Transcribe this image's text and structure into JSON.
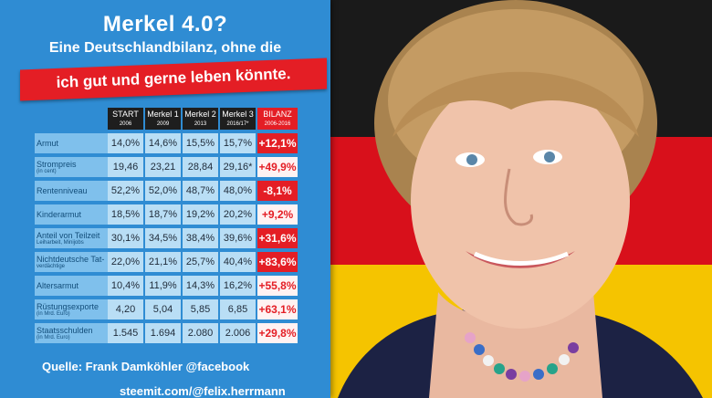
{
  "title": {
    "line1": "Merkel 4.0?",
    "line2": "Eine Deutschlandbilanz, ohne die",
    "line3": "ich gut und gerne leben könnte."
  },
  "table": {
    "headers": [
      {
        "label": "START",
        "sub": "2006"
      },
      {
        "label": "Merkel 1",
        "sub": "2009"
      },
      {
        "label": "Merkel 2",
        "sub": "2013"
      },
      {
        "label": "Merkel 3",
        "sub": "2016/17*"
      },
      {
        "label": "BILANZ",
        "sub": "2006-2016"
      }
    ],
    "rows": [
      {
        "label": "Armut",
        "note": "",
        "values": [
          "14,0%",
          "14,6%",
          "15,5%",
          "15,7%"
        ],
        "bilanz": "+12,1%",
        "bilanz_style": "red"
      },
      {
        "label": "Strompreis",
        "note": "(in cent)",
        "values": [
          "19,46",
          "23,21",
          "28,84",
          "29,16*"
        ],
        "bilanz": "+49,9%",
        "bilanz_style": "light"
      },
      {
        "label": "Rentenniveau",
        "note": "",
        "values": [
          "52,2%",
          "52,0%",
          "48,7%",
          "48,0%"
        ],
        "bilanz": "-8,1%",
        "bilanz_style": "red"
      },
      {
        "label": "Kinderarmut",
        "note": "",
        "values": [
          "18,5%",
          "18,7%",
          "19,2%",
          "20,2%"
        ],
        "bilanz": "+9,2%",
        "bilanz_style": "light"
      },
      {
        "label": "Anteil von Teilzeit",
        "note": "Leiharbeit, Minijobs",
        "values": [
          "30,1%",
          "34,5%",
          "38,4%",
          "39,6%"
        ],
        "bilanz": "+31,6%",
        "bilanz_style": "red"
      },
      {
        "label": "Nichtdeutsche Tat-",
        "note": "verdächtige",
        "values": [
          "22,0%",
          "21,1%",
          "25,7%",
          "40,4%"
        ],
        "bilanz": "+83,6%",
        "bilanz_style": "red"
      },
      {
        "label": "Altersarmut",
        "note": "",
        "values": [
          "10,4%",
          "11,9%",
          "14,3%",
          "16,2%"
        ],
        "bilanz": "+55,8%",
        "bilanz_style": "light"
      },
      {
        "label": "Rüstungsexporte",
        "note": "(in Mrd. Euro)",
        "values": [
          "4,20",
          "5,04",
          "5,85",
          "6,85"
        ],
        "bilanz": "+63,1%",
        "bilanz_style": "light"
      },
      {
        "label": "Staatsschulden",
        "note": "(in Mrd. Euro)",
        "values": [
          "1.545",
          "1.694",
          "2.080",
          "2.006"
        ],
        "bilanz": "+29,8%",
        "bilanz_style": "light"
      }
    ]
  },
  "footer": {
    "source": "Quelle: Frank Damköhler @facebook",
    "website": "steemit.com/@felix.herrmann"
  },
  "colors": {
    "panel_blue": "#2f8cd3",
    "accent_red": "#e41e25",
    "flag_black": "#1a1a1a",
    "flag_red": "#d8101b",
    "flag_gold": "#f5c400"
  }
}
